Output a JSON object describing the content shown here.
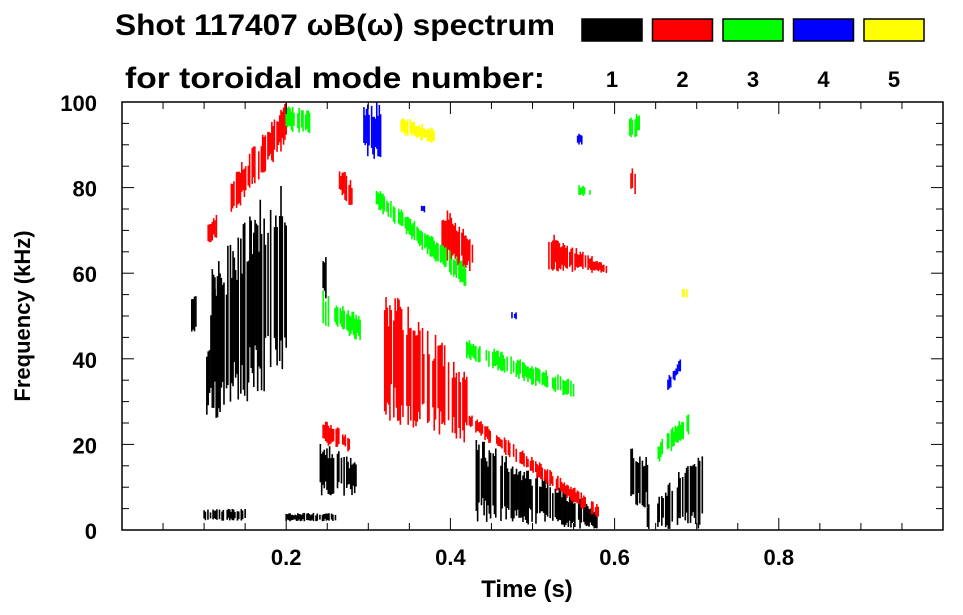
{
  "chart_data": {
    "type": "heatmap",
    "title_line1": "Shot 117407 ωB(ω) spectrum",
    "title_line2": "for toroidal mode number:",
    "xlabel": "Time (s)",
    "ylabel": "Frequency (kHz)",
    "xlim": [
      0,
      1.0
    ],
    "ylim": [
      0,
      100
    ],
    "xticks": [
      "0.2",
      "0.4",
      "0.6",
      "0.8"
    ],
    "xtick_values": [
      0.2,
      0.4,
      0.6,
      0.8
    ],
    "yticks": [
      "0",
      "20",
      "40",
      "60",
      "80",
      "100"
    ],
    "ytick_values": [
      0,
      20,
      40,
      60,
      80,
      100
    ],
    "legend": [
      {
        "label": "1",
        "color": "#000000"
      },
      {
        "label": "2",
        "color": "#ff0000"
      },
      {
        "label": "3",
        "color": "#00ff00"
      },
      {
        "label": "4",
        "color": "#0000ff"
      },
      {
        "label": "5",
        "color": "#ffff00"
      }
    ],
    "series": [
      {
        "name": "1",
        "color": "#000000",
        "patches": [
          {
            "t": [
              0.085,
              0.09
            ],
            "f_low": [
              45,
              45
            ],
            "f_high": [
              55,
              55
            ]
          },
          {
            "t": [
              0.1,
              0.115
            ],
            "f_low": [
              22,
              30
            ],
            "f_high": [
              40,
              60
            ]
          },
          {
            "t": [
              0.11,
              0.2
            ],
            "f_low": [
              25,
              35
            ],
            "f_high": [
              62,
              86
            ]
          },
          {
            "t": [
              0.1,
              0.15
            ],
            "f_low": [
              2,
              2
            ],
            "f_high": [
              5,
              5
            ]
          },
          {
            "t": [
              0.2,
              0.26
            ],
            "f_low": [
              2,
              2
            ],
            "f_high": [
              4,
              4
            ]
          },
          {
            "t": [
              0.24,
              0.285
            ],
            "f_low": [
              8,
              8
            ],
            "f_high": [
              22,
              16
            ]
          },
          {
            "t": [
              0.245,
              0.25
            ],
            "f_low": [
              54,
              54
            ],
            "f_high": [
              64,
              64
            ]
          },
          {
            "t": [
              0.43,
              0.58
            ],
            "f_low": [
              2,
              0
            ],
            "f_high": [
              22,
              5
            ]
          },
          {
            "t": [
              0.62,
              0.64
            ],
            "f_low": [
              5,
              5
            ],
            "f_high": [
              20,
              18
            ]
          },
          {
            "t": [
              0.64,
              0.71
            ],
            "f_low": [
              0,
              0
            ],
            "f_high": [
              6,
              20
            ]
          }
        ]
      },
      {
        "name": "2",
        "color": "#ff0000",
        "patches": [
          {
            "t": [
              0.13,
              0.2
            ],
            "f_low": [
              72,
              90
            ],
            "f_high": [
              82,
              100
            ]
          },
          {
            "t": [
              0.105,
              0.115
            ],
            "f_low": [
              66,
              68
            ],
            "f_high": [
              72,
              74
            ]
          },
          {
            "t": [
              0.245,
              0.28
            ],
            "f_low": [
              20,
              18
            ],
            "f_high": [
              26,
              22
            ]
          },
          {
            "t": [
              0.32,
              0.42
            ],
            "f_low": [
              25,
              20
            ],
            "f_high": [
              58,
              38
            ]
          },
          {
            "t": [
              0.42,
              0.58
            ],
            "f_low": [
              24,
              2
            ],
            "f_high": [
              28,
              6
            ]
          },
          {
            "t": [
              0.39,
              0.43
            ],
            "f_low": [
              63,
              60
            ],
            "f_high": [
              76,
              68
            ]
          },
          {
            "t": [
              0.52,
              0.59
            ],
            "f_low": [
              60,
              60
            ],
            "f_high": [
              70,
              62
            ]
          },
          {
            "t": [
              0.265,
              0.28
            ],
            "f_low": [
              78,
              75
            ],
            "f_high": [
              85,
              82
            ]
          },
          {
            "t": [
              0.62,
              0.625
            ],
            "f_low": [
              78,
              78
            ],
            "f_high": [
              85,
              85
            ]
          }
        ]
      },
      {
        "name": "3",
        "color": "#00ff00",
        "patches": [
          {
            "t": [
              0.2,
              0.23
            ],
            "f_low": [
              93,
              92
            ],
            "f_high": [
              100,
              98
            ]
          },
          {
            "t": [
              0.31,
              0.42
            ],
            "f_low": [
              75,
              56
            ],
            "f_high": [
              80,
              62
            ]
          },
          {
            "t": [
              0.245,
              0.29
            ],
            "f_low": [
              48,
              44
            ],
            "f_high": [
              56,
              50
            ]
          },
          {
            "t": [
              0.42,
              0.55
            ],
            "f_low": [
              40,
              30
            ],
            "f_high": [
              45,
              35
            ]
          },
          {
            "t": [
              0.555,
              0.57
            ],
            "f_low": [
              78,
              78
            ],
            "f_high": [
              81,
              80
            ]
          },
          {
            "t": [
              0.65,
              0.69
            ],
            "f_low": [
              15,
              22
            ],
            "f_high": [
              20,
              28
            ]
          },
          {
            "t": [
              0.615,
              0.63
            ],
            "f_low": [
              90,
              92
            ],
            "f_high": [
              96,
              98
            ]
          }
        ]
      },
      {
        "name": "4",
        "color": "#0000ff",
        "patches": [
          {
            "t": [
              0.29,
              0.315
            ],
            "f_low": [
              88,
              86
            ],
            "f_high": [
              100,
              100
            ]
          },
          {
            "t": [
              0.555,
              0.56
            ],
            "f_low": [
              90,
              90
            ],
            "f_high": [
              93,
              93
            ]
          },
          {
            "t": [
              0.665,
              0.68
            ],
            "f_low": [
              32,
              37
            ],
            "f_high": [
              36,
              40
            ]
          },
          {
            "t": [
              0.365,
              0.37
            ],
            "f_low": [
              74,
              74
            ],
            "f_high": [
              76,
              76
            ]
          },
          {
            "t": [
              0.475,
              0.48
            ],
            "f_low": [
              49,
              49
            ],
            "f_high": [
              51,
              51
            ]
          }
        ]
      },
      {
        "name": "5",
        "color": "#ffff00",
        "patches": [
          {
            "t": [
              0.34,
              0.38
            ],
            "f_low": [
              92,
              90
            ],
            "f_high": [
              97,
              94
            ]
          },
          {
            "t": [
              0.683,
              0.688
            ],
            "f_low": [
              54,
              54
            ],
            "f_high": [
              57,
              57
            ]
          }
        ]
      }
    ]
  }
}
